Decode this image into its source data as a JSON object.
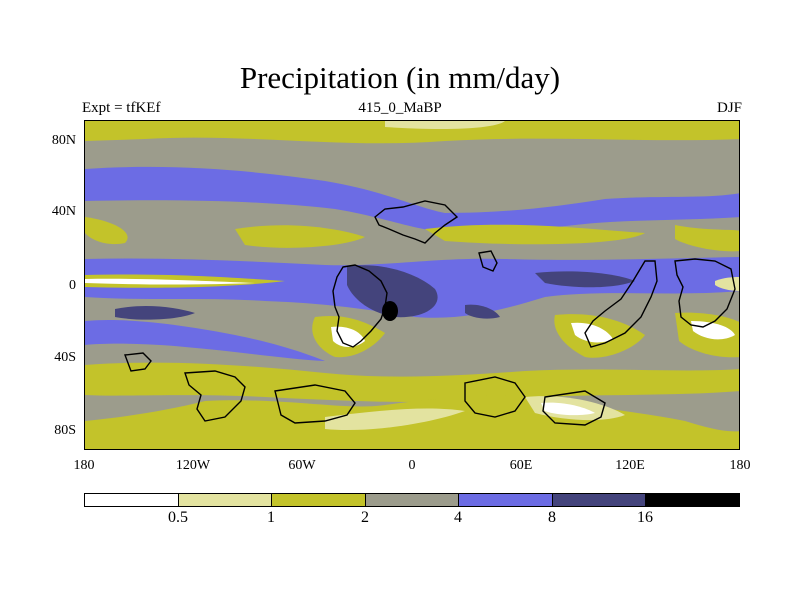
{
  "title": "Precipitation (in mm/day)",
  "subtitle_left": "Expt = tfKEf",
  "subtitle_center": "415_0_MaBP",
  "subtitle_right": "DJF",
  "lat_labels": [
    "80N",
    "40N",
    "0",
    "40S",
    "80S"
  ],
  "lon_labels": [
    "180",
    "120W",
    "60W",
    "0",
    "60E",
    "120E",
    "180"
  ],
  "colorbar": {
    "colors": [
      "#ffffff",
      "#e3e3a0",
      "#c3c32a",
      "#9c9c8c",
      "#6c6ce4",
      "#44447c",
      "#000000"
    ],
    "labels": [
      "0.5",
      "1",
      "2",
      "4",
      "8",
      "16"
    ]
  }
}
